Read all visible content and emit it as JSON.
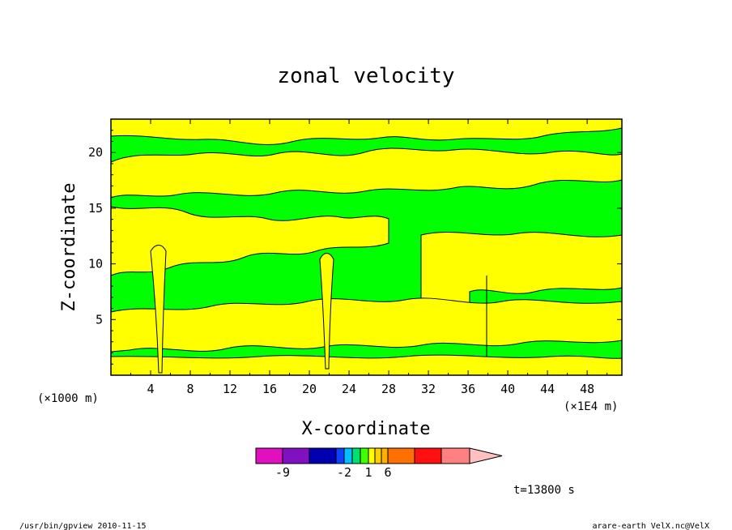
{
  "chart_data": {
    "type": "heatmap",
    "title": "zonal velocity",
    "xlabel": "X-coordinate",
    "ylabel": "Z-coordinate",
    "x_unit_label": "(×1000 m)",
    "x_scale_label": "(×1E4 m)",
    "xlim": [
      0,
      51.5
    ],
    "ylim": [
      0,
      23
    ],
    "x_ticks": [
      4,
      8,
      12,
      16,
      20,
      24,
      28,
      32,
      36,
      40,
      44,
      48
    ],
    "y_ticks": [
      5,
      10,
      15,
      20
    ],
    "colorbar": {
      "tick_labels": [
        "-9",
        "-2",
        "1",
        "6"
      ],
      "levels": [
        "-12",
        "-9",
        "-6",
        "-3",
        "-2",
        "-1",
        "0",
        "1",
        "2",
        "3",
        "6",
        "9",
        "12"
      ],
      "colors": [
        "#e010c0",
        "#8010c0",
        "#0000b0",
        "#1040ff",
        "#00c0ff",
        "#00e070",
        "#40ff00",
        "#ffff00",
        "#ffd000",
        "#ffb000",
        "#ff7000",
        "#ff1010",
        "#ff8080",
        "#ffc0c0"
      ]
    },
    "timestamp": "t=13800 s",
    "contour_fill_colors": {
      "positive": "#ffff00",
      "negative": "#00ff00"
    }
  },
  "footer": {
    "left": "/usr/bin/gpview   2010-11-15",
    "right": "arare-earth_VelX.nc@VelX"
  }
}
